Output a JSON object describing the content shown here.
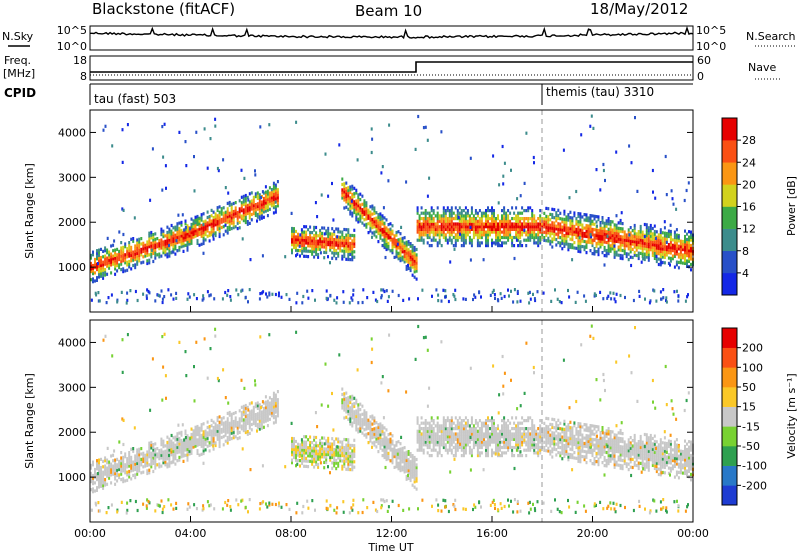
{
  "header": {
    "station": "Blackstone (fitACF)",
    "beam": "Beam 10",
    "date": "18/May/2012"
  },
  "top_panels": {
    "nsky_label": "N.Sky",
    "nsearch_label": "N.Search",
    "noise_ticks": [
      "10^5",
      "10^0"
    ],
    "freq_label": "Freq.",
    "freq_unit": "[MHz]",
    "freq_ticks": [
      "18",
      "8"
    ],
    "nave_label": "Nave",
    "nave_ticks": [
      "60",
      "0"
    ],
    "cpid_label": "CPID",
    "cpid_entries": [
      {
        "name": "tau (fast) 503",
        "start_hour": 0
      },
      {
        "name": "themis (tau) 3310",
        "start_hour": 18
      }
    ]
  },
  "chart_data": [
    {
      "type": "heatmap",
      "panel": "power",
      "ylabel": "Slant Range [km]",
      "yticks": [
        1000,
        2000,
        3000,
        4000
      ],
      "ylim": [
        0,
        4500
      ],
      "xlim_hours": [
        0,
        24
      ],
      "colorbar": {
        "label": "Power [dB]",
        "ticks": [
          "4",
          "8",
          "12",
          "16",
          "20",
          "24",
          "28"
        ],
        "colors": [
          "#1428e6",
          "#2850c8",
          "#3c8c8c",
          "#3caa46",
          "#d2d21e",
          "#fa9614",
          "#fa5014",
          "#e60000"
        ]
      },
      "echo_bands": [
        {
          "hours": [
            0,
            4,
            7.5
          ],
          "range_km": [
            1000,
            1750,
            2600
          ]
        },
        {
          "hours": [
            8,
            10.5
          ],
          "range_km": [
            1600,
            1500
          ]
        },
        {
          "hours": [
            10,
            13
          ],
          "range_km": [
            2700,
            1050
          ]
        },
        {
          "hours": [
            13,
            18,
            24
          ],
          "range_km": [
            1900,
            1900,
            1350
          ]
        }
      ]
    },
    {
      "type": "heatmap",
      "panel": "velocity",
      "xlabel": "Time UT",
      "ylabel": "Slant Range [km]",
      "yticks": [
        1000,
        2000,
        3000,
        4000
      ],
      "ylim": [
        0,
        4500
      ],
      "xticks": [
        "00:00",
        "04:00",
        "08:00",
        "12:00",
        "16:00",
        "20:00",
        "00:00"
      ],
      "xlim_hours": [
        0,
        24
      ],
      "colorbar": {
        "label": "Velocity [m s⁻¹]",
        "ticks": [
          "200",
          "100",
          "50",
          "15",
          "-15",
          "-50",
          "-100",
          "-200"
        ],
        "colors": [
          "#1e3cd2",
          "#2878c8",
          "#2ea050",
          "#78d232",
          "#c8c8c8",
          "#fac828",
          "#fa9614",
          "#fa5014",
          "#e60000"
        ]
      }
    }
  ]
}
